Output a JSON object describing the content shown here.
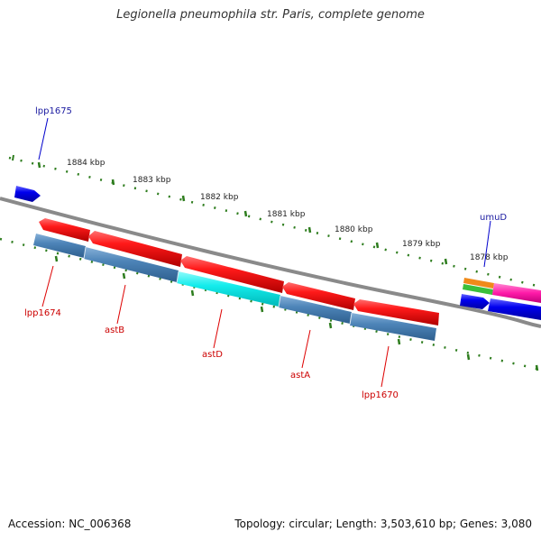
{
  "title": "Legionella pneumophila str. Paris, complete genome",
  "footer": {
    "accession": "Accession: NC_006368",
    "stats": "Topology: circular; Length: 3,503,610 bp; Genes: 3,080"
  },
  "ruler_labels": [
    "1884 kbp",
    "1883 kbp",
    "1882 kbp",
    "1881 kbp",
    "1880 kbp",
    "1879 kbp",
    "1878 kbp"
  ],
  "genes": {
    "lpp1675": "lpp1675",
    "umuD": "umuD",
    "lpp1674": "lpp1674",
    "astB": "astB",
    "astD": "astD",
    "astA": "astA",
    "lpp1670": "lpp1670"
  },
  "colors": {
    "forward_gene": "#0000e6",
    "reverse_gene": "#e60000",
    "cds_feature": "#4a7fb5",
    "highlight_feature": "#00e6e6",
    "backbone": "#8a8a8a",
    "ruler": "#2e7d1e"
  }
}
